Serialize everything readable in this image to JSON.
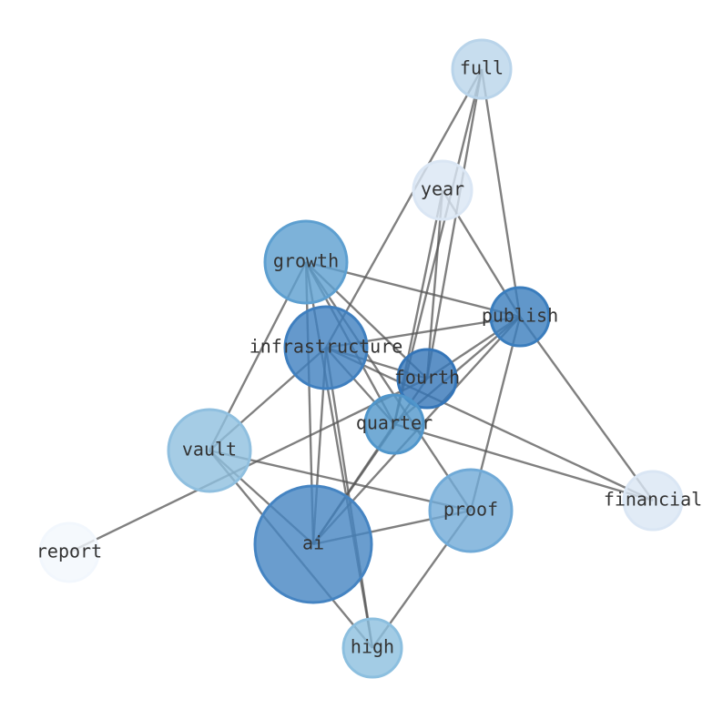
{
  "nodes": [
    {
      "label": "full"
    },
    {
      "label": "year"
    },
    {
      "label": "growth"
    },
    {
      "label": "publish"
    },
    {
      "label": "infrastructure"
    },
    {
      "label": "fourth"
    },
    {
      "label": "quarter"
    },
    {
      "label": "vault"
    },
    {
      "label": "financial"
    },
    {
      "label": "proof"
    },
    {
      "label": "report"
    },
    {
      "label": "ai"
    },
    {
      "label": "high"
    }
  ]
}
